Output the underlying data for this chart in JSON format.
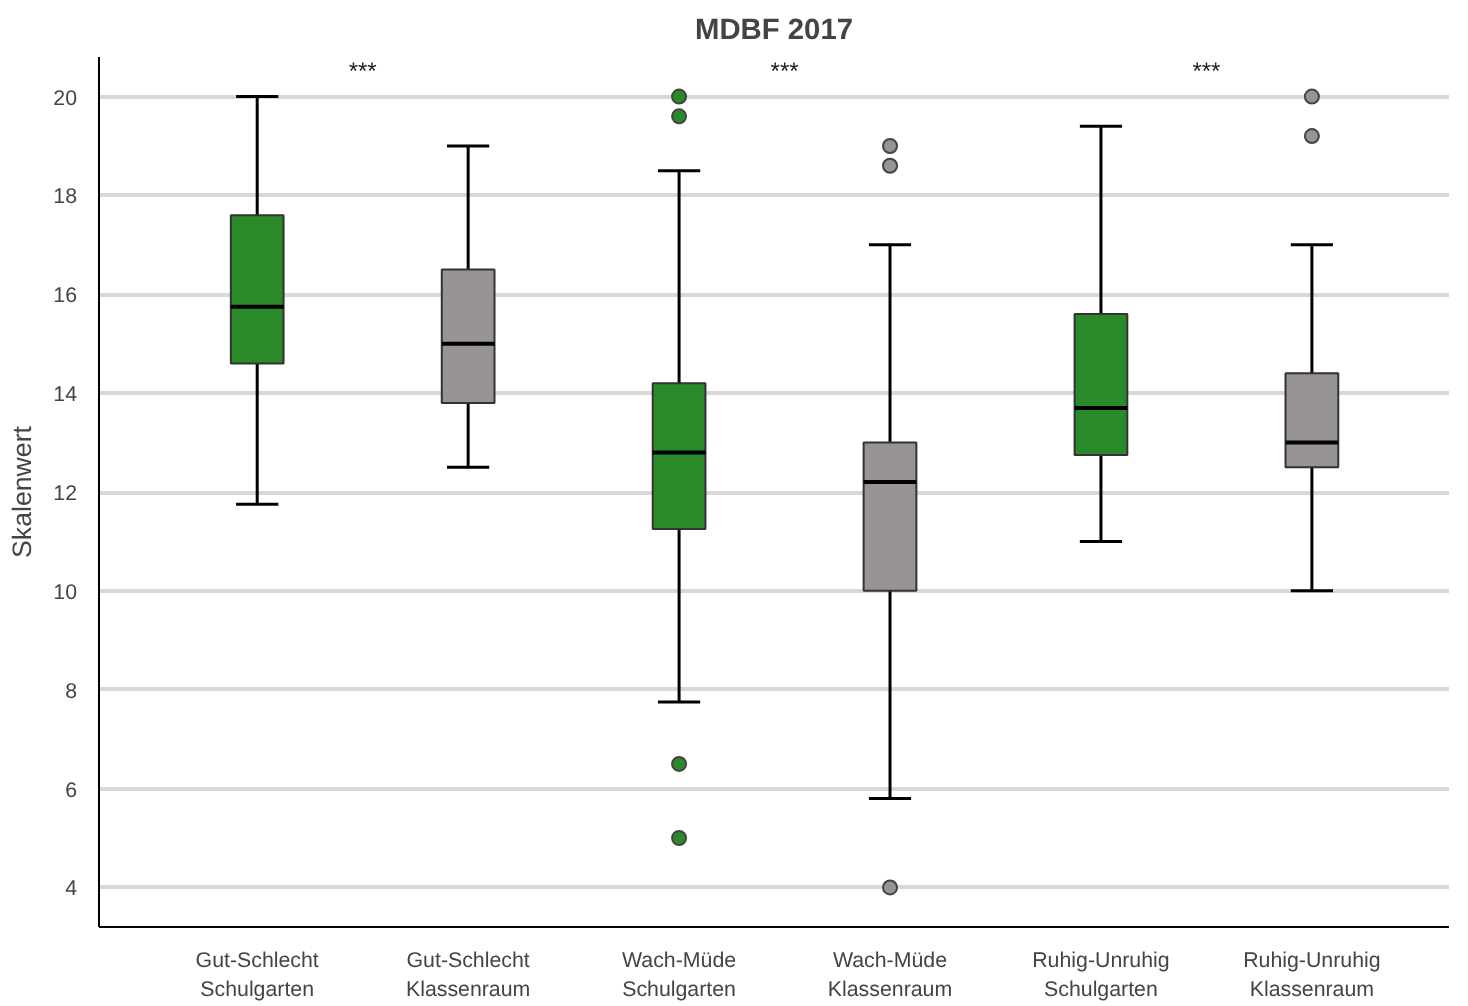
{
  "chart_data": {
    "type": "box",
    "title": "MDBF 2017",
    "ylabel": "Skalenwert",
    "categories": [
      "Gut-Schlecht\nSchulgarten",
      "Gut-Schlecht\nKlassenraum",
      "Wach-Müde\nSchulgarten",
      "Wach-Müde\nKlassenraum",
      "Ruhig-Unruhig\nSchulgarten",
      "Ruhig-Unruhig\nKlassenraum"
    ],
    "colors": [
      "#2a8a2a",
      "#989494",
      "#2a8a2a",
      "#989494",
      "#2a8a2a",
      "#989494"
    ],
    "boxes": [
      {
        "low": 11.75,
        "q1": 14.6,
        "median": 15.75,
        "q3": 17.6,
        "high": 20
      },
      {
        "low": 12.5,
        "q1": 13.8,
        "median": 15,
        "q3": 16.5,
        "high": 19
      },
      {
        "low": 7.75,
        "q1": 11.25,
        "median": 12.8,
        "q3": 14.2,
        "high": 18.5,
        "outliers": [
          20,
          19.6,
          6.5,
          5
        ]
      },
      {
        "low": 5.8,
        "q1": 10,
        "median": 12.2,
        "q3": 13,
        "high": 17,
        "outliers": [
          19,
          18.6,
          4
        ]
      },
      {
        "low": 11,
        "q1": 12.75,
        "median": 13.7,
        "q3": 15.6,
        "high": 19.4
      },
      {
        "low": 10,
        "q1": 12.5,
        "median": 13,
        "q3": 14.4,
        "high": 17,
        "outliers": [
          20,
          19.2
        ]
      }
    ],
    "annotations": [
      "***",
      "***",
      "***"
    ],
    "ylim": [
      3.2,
      20.8
    ],
    "yticks": [
      4,
      6,
      8,
      10,
      12,
      14,
      16,
      18,
      20
    ],
    "grid": "y"
  }
}
